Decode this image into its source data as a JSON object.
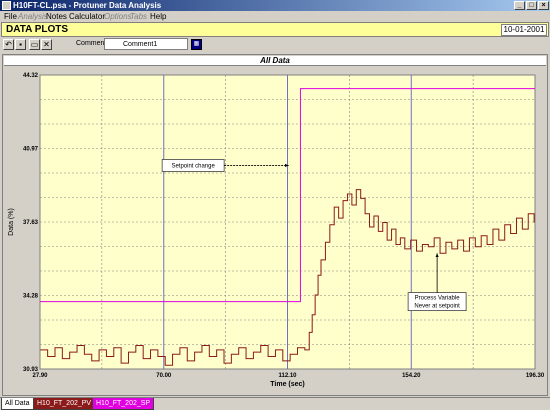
{
  "window": {
    "title": "H10FT-CL.psa - Protuner Data Analysis",
    "minimize_label": "_",
    "maximize_label": "□",
    "close_label": "×"
  },
  "menu": {
    "items": [
      {
        "label": "File",
        "enabled": true
      },
      {
        "label": "Analysis",
        "enabled": false
      },
      {
        "label": "Notes",
        "enabled": true
      },
      {
        "label": "Calculator",
        "enabled": true
      },
      {
        "label": "Options",
        "enabled": false
      },
      {
        "label": "Tabs",
        "enabled": false
      },
      {
        "label": "Help",
        "enabled": true
      }
    ]
  },
  "banner": {
    "title": "DATA PLOTS",
    "date": "10-01-2001"
  },
  "toolbar": {
    "undo_icon": "undo-icon",
    "save_icon": "save-icon",
    "print_icon": "print-icon",
    "tools_icon": "tools-icon",
    "comment_label": "Comment",
    "comment_value": "Comment1"
  },
  "plot": {
    "header": "All Data"
  },
  "chart_data": {
    "type": "line",
    "title": "All Data",
    "xlabel": "Time (sec)",
    "ylabel": "Data (%)",
    "xlim": [
      27.9,
      196.3
    ],
    "ylim": [
      30.93,
      44.32
    ],
    "x_ticks": [
      27.9,
      70.0,
      112.1,
      154.2,
      196.3
    ],
    "x_tick_labels": [
      "27.90",
      "70.00",
      "112.10",
      "154.20",
      "196.30"
    ],
    "y_ticks": [
      30.93,
      34.28,
      37.63,
      40.97,
      44.32
    ],
    "y_tick_labels": [
      "30.93",
      "34.28",
      "37.63",
      "40.97",
      "44.32"
    ],
    "grid": true,
    "series": [
      {
        "name": "H10_FT_202_PV",
        "color": "#8b1a1a",
        "x": [
          28.0,
          30.5,
          33.0,
          35.5,
          38.0,
          40.5,
          43.0,
          45.5,
          48.0,
          50.5,
          53.0,
          55.5,
          58.0,
          60.5,
          63.0,
          65.5,
          68.0,
          70.5,
          73.0,
          75.5,
          78.0,
          80.5,
          83.0,
          85.5,
          88.0,
          90.5,
          93.0,
          95.5,
          98.0,
          100.5,
          103.0,
          105.5,
          108.0,
          110.5,
          113.0,
          115.5,
          118.0,
          119.5,
          120.5,
          121.5,
          122.5,
          123.5,
          125.0,
          126.5,
          128.0,
          129.5,
          131.0,
          132.5,
          134.0,
          135.5,
          137.0,
          138.5,
          140.0,
          141.5,
          143.0,
          144.5,
          146.0,
          147.5,
          149.0,
          150.5,
          152.0,
          154.0,
          156.0,
          158.0,
          160.0,
          162.0,
          164.0,
          166.0,
          168.0,
          170.0,
          172.0,
          174.0,
          176.0,
          178.0,
          180.0,
          182.0,
          184.0,
          186.0,
          188.0,
          190.0,
          192.0,
          194.0,
          196.0
        ],
        "y": [
          31.8,
          31.5,
          31.9,
          31.4,
          31.7,
          32.0,
          31.6,
          31.3,
          31.8,
          31.5,
          31.9,
          31.2,
          31.7,
          32.0,
          31.4,
          31.8,
          31.5,
          31.1,
          31.6,
          31.9,
          31.3,
          31.7,
          32.0,
          31.5,
          31.8,
          31.2,
          31.6,
          31.9,
          31.4,
          31.7,
          32.0,
          31.5,
          31.8,
          31.3,
          31.6,
          31.9,
          31.8,
          32.6,
          33.4,
          34.3,
          35.2,
          35.9,
          36.7,
          37.5,
          38.3,
          37.8,
          38.6,
          38.9,
          38.4,
          39.1,
          38.7,
          38.0,
          37.4,
          37.9,
          37.2,
          37.6,
          36.8,
          37.3,
          36.6,
          36.9,
          36.4,
          36.8,
          36.3,
          36.6,
          36.5,
          36.9,
          36.2,
          36.7,
          36.4,
          36.8,
          36.3,
          36.9,
          36.5,
          37.0,
          36.6,
          37.3,
          36.8,
          37.5,
          37.1,
          37.8,
          37.3,
          38.0,
          37.6
        ]
      },
      {
        "name": "H10_FT_202_SP",
        "color": "#e000e0",
        "x": [
          27.9,
          116.5,
          116.5,
          196.3
        ],
        "y": [
          34.0,
          34.0,
          43.7,
          43.7
        ]
      }
    ],
    "annotations": [
      {
        "text": "Setpoint change",
        "x": 80.0,
        "y": 40.2,
        "arrow_to": [
          112.5,
          40.2
        ]
      },
      {
        "text": "Process Variable",
        "text2": "Never at setpoint",
        "x": 163.0,
        "y": 34.0,
        "arrow_to": [
          163.0,
          36.2
        ]
      }
    ]
  },
  "tabs": [
    {
      "label": "All Data",
      "bg": "#ffffff",
      "fg": "#000000"
    },
    {
      "label": "H10_FT_202_PV",
      "bg": "#8b1a1a",
      "fg": "#ffffff"
    },
    {
      "label": "H10_FT_202_SP",
      "bg": "#e000e0",
      "fg": "#ffffff"
    }
  ]
}
